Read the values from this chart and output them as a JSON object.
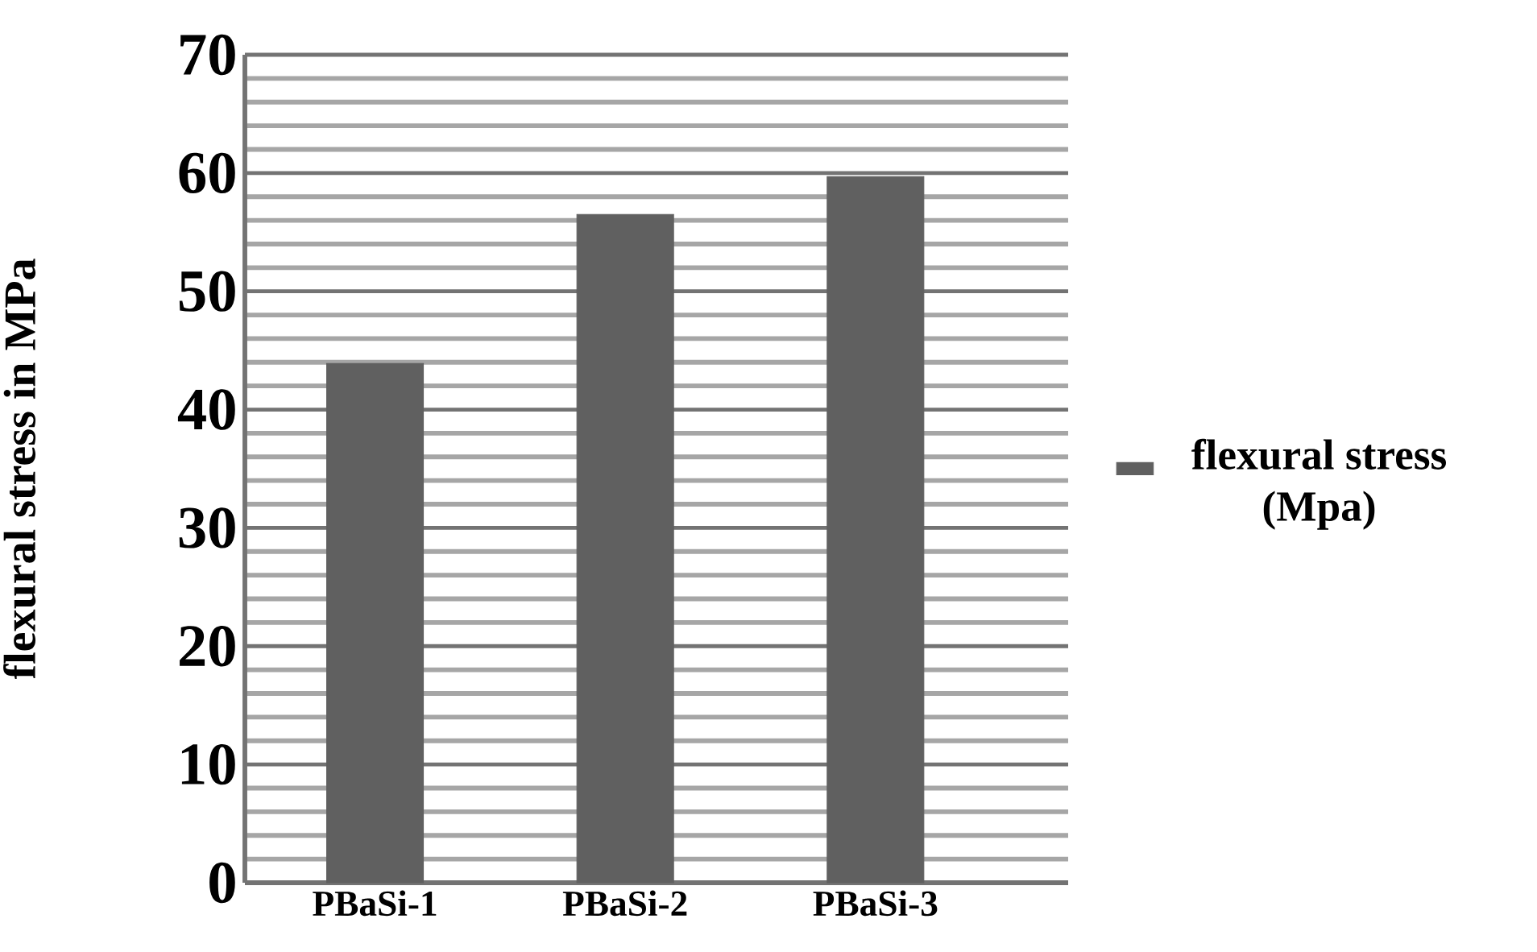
{
  "chart_data": {
    "type": "bar",
    "ylabel": "flexural stress in MPa",
    "categories": [
      "PBaSi-1",
      "PBaSi-2",
      "PBaSi-3"
    ],
    "series": [
      {
        "name": "flexural stress (Mpa)",
        "color": "#606060",
        "values": [
          43.9,
          56.5,
          59.7
        ]
      }
    ],
    "ylim": [
      0,
      70
    ],
    "yticks": [
      0,
      10,
      20,
      30,
      40,
      50,
      60,
      70
    ],
    "grid": "y",
    "legend": "right"
  }
}
